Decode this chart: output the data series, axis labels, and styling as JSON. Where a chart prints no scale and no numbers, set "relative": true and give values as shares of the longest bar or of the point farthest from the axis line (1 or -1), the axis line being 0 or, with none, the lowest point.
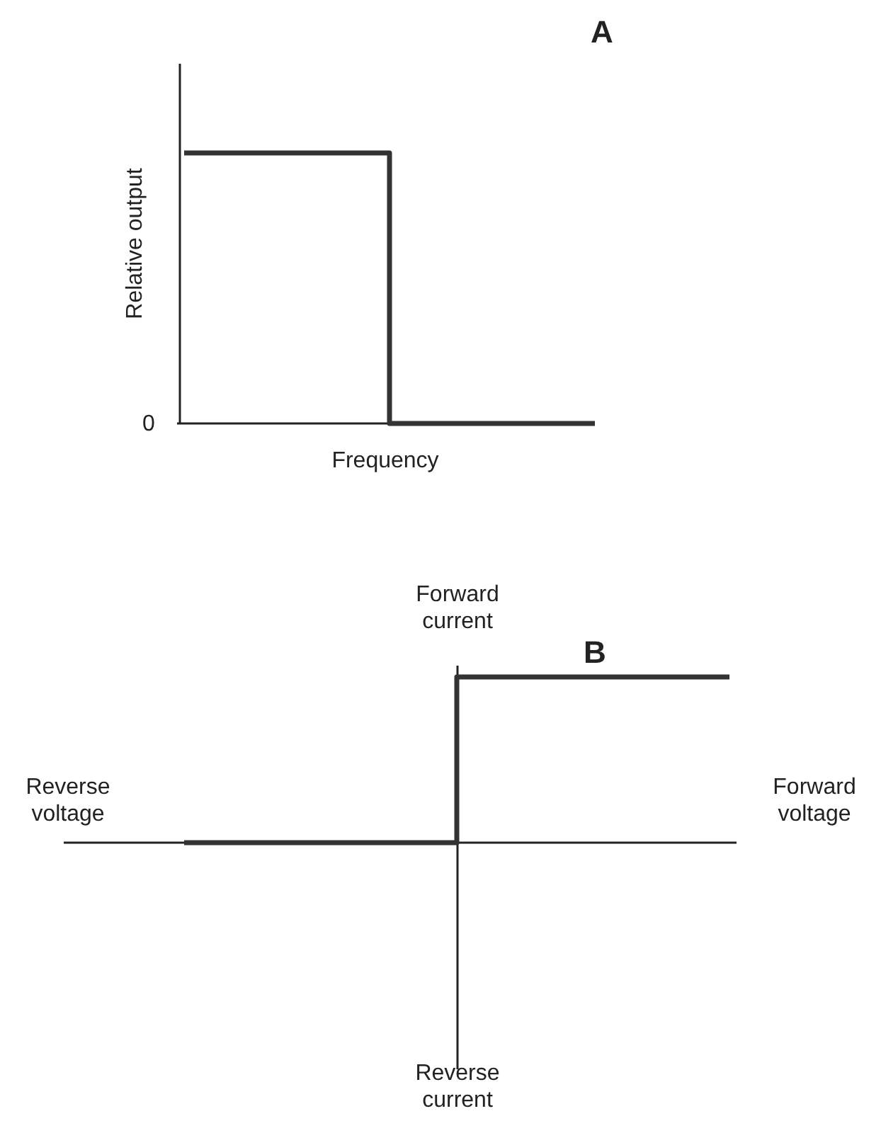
{
  "chart_data": [
    {
      "type": "step",
      "title": "A",
      "xlabel": "Frequency",
      "ylabel": "Relative output",
      "categories": [
        null,
        null,
        null
      ],
      "values": [
        1,
        0,
        0
      ],
      "color": "#333333",
      "relative": true,
      "annotations": [
        "0"
      ]
    },
    {
      "type": "step",
      "title": "B",
      "xlabel": "Forward voltage",
      "ylabel": "Forward current",
      "categories": [
        null,
        null,
        null
      ],
      "values": [
        0,
        1,
        1
      ],
      "color": "#333333",
      "relative": true,
      "annotations": [
        "Reverse voltage",
        "Reverse current"
      ]
    }
  ]
}
